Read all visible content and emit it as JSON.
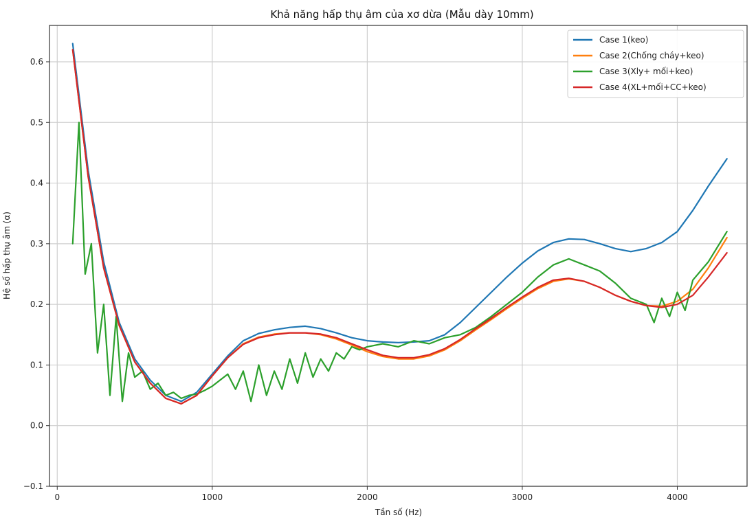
{
  "chart_data": {
    "type": "line",
    "title": "Khả năng hấp thụ âm của xơ dừa (Mẫu dày 10mm)",
    "xlabel": "Tần số (Hz)",
    "ylabel": "Hệ số hấp thụ âm (α)",
    "xlim": [
      -50,
      4450
    ],
    "ylim": [
      -0.1,
      0.66
    ],
    "xticks": [
      0,
      1000,
      2000,
      3000,
      4000
    ],
    "yticks": [
      -0.1,
      0.0,
      0.1,
      0.2,
      0.3,
      0.4,
      0.5,
      0.6
    ],
    "ytick_labels": [
      "−0.1",
      "0.0",
      "0.1",
      "0.2",
      "0.3",
      "0.4",
      "0.5",
      "0.6"
    ],
    "grid": true,
    "legend_position": "top-right",
    "series": [
      {
        "name": "Case 1(keo)",
        "color": "#1f77b4",
        "x": [
          100,
          200,
          300,
          400,
          500,
          600,
          700,
          800,
          900,
          1000,
          1100,
          1200,
          1300,
          1400,
          1500,
          1600,
          1700,
          1800,
          1900,
          2000,
          2100,
          2200,
          2300,
          2400,
          2500,
          2600,
          2700,
          2800,
          2900,
          3000,
          3100,
          3200,
          3300,
          3400,
          3500,
          3600,
          3700,
          3800,
          3900,
          4000,
          4100,
          4200,
          4320
        ],
        "y": [
          0.63,
          0.42,
          0.27,
          0.17,
          0.11,
          0.075,
          0.05,
          0.04,
          0.055,
          0.085,
          0.115,
          0.14,
          0.152,
          0.158,
          0.162,
          0.164,
          0.16,
          0.153,
          0.145,
          0.14,
          0.138,
          0.137,
          0.138,
          0.14,
          0.15,
          0.17,
          0.195,
          0.22,
          0.245,
          0.268,
          0.288,
          0.302,
          0.308,
          0.307,
          0.3,
          0.292,
          0.287,
          0.292,
          0.302,
          0.32,
          0.355,
          0.395,
          0.44
        ]
      },
      {
        "name": "Case 2(Chống cháy+keo)",
        "color": "#ff7f0e",
        "x": [
          100,
          200,
          300,
          400,
          500,
          600,
          700,
          800,
          900,
          1000,
          1100,
          1200,
          1300,
          1400,
          1500,
          1600,
          1700,
          1800,
          1900,
          2000,
          2100,
          2200,
          2300,
          2400,
          2500,
          2600,
          2700,
          2800,
          2900,
          3000,
          3100,
          3200,
          3300,
          3400,
          3500,
          3600,
          3700,
          3800,
          3900,
          4000,
          4100,
          4200,
          4320
        ],
        "y": [
          0.62,
          0.41,
          0.26,
          0.165,
          0.105,
          0.07,
          0.045,
          0.036,
          0.05,
          0.082,
          0.112,
          0.135,
          0.146,
          0.151,
          0.153,
          0.153,
          0.15,
          0.143,
          0.133,
          0.122,
          0.114,
          0.11,
          0.11,
          0.115,
          0.125,
          0.14,
          0.158,
          0.175,
          0.193,
          0.21,
          0.226,
          0.238,
          0.242,
          0.238,
          0.228,
          0.215,
          0.205,
          0.198,
          0.197,
          0.205,
          0.225,
          0.26,
          0.31
        ]
      },
      {
        "name": "Case 3(Xly+ mối+keo)",
        "color": "#2ca02c",
        "x": [
          100,
          140,
          180,
          220,
          260,
          300,
          340,
          380,
          420,
          460,
          500,
          550,
          600,
          650,
          700,
          750,
          800,
          850,
          900,
          950,
          1000,
          1050,
          1100,
          1150,
          1200,
          1250,
          1300,
          1350,
          1400,
          1450,
          1500,
          1550,
          1600,
          1650,
          1700,
          1750,
          1800,
          1850,
          1900,
          1950,
          2000,
          2100,
          2200,
          2300,
          2400,
          2500,
          2600,
          2700,
          2800,
          2900,
          3000,
          3100,
          3200,
          3300,
          3400,
          3500,
          3600,
          3700,
          3800,
          3850,
          3900,
          3950,
          4000,
          4050,
          4100,
          4200,
          4320
        ],
        "y": [
          0.3,
          0.5,
          0.25,
          0.3,
          0.12,
          0.2,
          0.05,
          0.18,
          0.04,
          0.12,
          0.08,
          0.09,
          0.06,
          0.07,
          0.05,
          0.055,
          0.045,
          0.05,
          0.052,
          0.058,
          0.065,
          0.075,
          0.085,
          0.06,
          0.09,
          0.04,
          0.1,
          0.05,
          0.09,
          0.06,
          0.11,
          0.07,
          0.12,
          0.08,
          0.11,
          0.09,
          0.12,
          0.11,
          0.13,
          0.125,
          0.13,
          0.135,
          0.13,
          0.14,
          0.135,
          0.145,
          0.15,
          0.162,
          0.18,
          0.2,
          0.22,
          0.245,
          0.265,
          0.275,
          0.265,
          0.255,
          0.235,
          0.21,
          0.2,
          0.17,
          0.21,
          0.18,
          0.22,
          0.19,
          0.24,
          0.27,
          0.32
        ]
      },
      {
        "name": "Case 4(XL+mối+CC+keo)",
        "color": "#d62728",
        "x": [
          100,
          200,
          300,
          400,
          500,
          600,
          700,
          800,
          900,
          1000,
          1100,
          1200,
          1300,
          1400,
          1500,
          1600,
          1700,
          1800,
          1900,
          2000,
          2100,
          2200,
          2300,
          2400,
          2500,
          2600,
          2700,
          2800,
          2900,
          3000,
          3100,
          3200,
          3300,
          3400,
          3500,
          3600,
          3700,
          3800,
          3900,
          4000,
          4100,
          4200,
          4320
        ],
        "y": [
          0.62,
          0.41,
          0.26,
          0.165,
          0.105,
          0.07,
          0.045,
          0.036,
          0.05,
          0.082,
          0.112,
          0.134,
          0.145,
          0.15,
          0.153,
          0.153,
          0.151,
          0.145,
          0.135,
          0.125,
          0.116,
          0.112,
          0.112,
          0.117,
          0.127,
          0.142,
          0.16,
          0.177,
          0.195,
          0.212,
          0.228,
          0.24,
          0.243,
          0.238,
          0.228,
          0.215,
          0.205,
          0.198,
          0.195,
          0.2,
          0.215,
          0.245,
          0.285
        ]
      }
    ]
  }
}
